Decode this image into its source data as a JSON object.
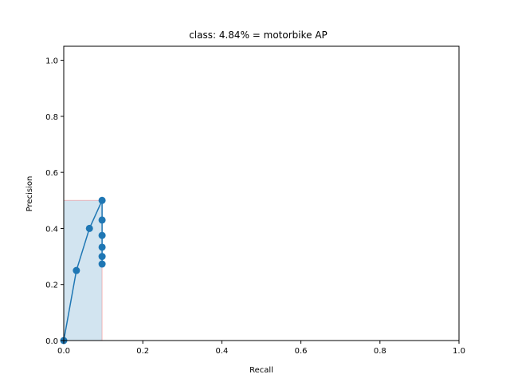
{
  "chart_data": {
    "type": "line",
    "title": "class: 4.84% = motorbike AP",
    "xlabel": "Recall",
    "ylabel": "Precision",
    "xlim": [
      0.0,
      1.0
    ],
    "ylim": [
      0.0,
      1.05
    ],
    "xticks": [
      "0.0",
      "0.2",
      "0.4",
      "0.6",
      "0.8",
      "1.0"
    ],
    "yticks": [
      "0.0",
      "0.2",
      "0.4",
      "0.6",
      "0.8",
      "1.0"
    ],
    "grid": false,
    "series": [
      {
        "x": [
          0.0,
          0.032,
          0.065,
          0.097,
          0.097,
          0.097,
          0.097,
          0.097,
          0.097
        ],
        "y": [
          0.0,
          0.25,
          0.4,
          0.5,
          0.43,
          0.375,
          0.333,
          0.3,
          0.273
        ],
        "color": "#1f77b4"
      }
    ],
    "filled_area": {
      "x": [
        0.0,
        0.0,
        0.097,
        0.097
      ],
      "y": [
        0.0,
        0.5,
        0.5,
        0.0
      ],
      "fill_color": "#1f77b4",
      "edge_color": "#ff0000"
    }
  }
}
